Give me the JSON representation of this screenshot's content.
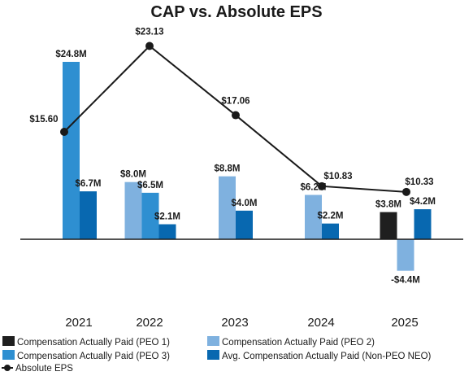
{
  "chart_data": {
    "type": "bar",
    "title": "CAP vs. Absolute EPS",
    "categories": [
      "2021",
      "2022",
      "2023",
      "2024",
      "2025"
    ],
    "series": [
      {
        "name": "Compensation Actually Paid (PEO 1)",
        "color": "#1f1f1f",
        "values": [
          null,
          null,
          null,
          null,
          3.8
        ],
        "labels": [
          null,
          null,
          null,
          null,
          "$3.8M"
        ]
      },
      {
        "name": "Compensation Actually Paid (PEO 2)",
        "color": "#7fb1df",
        "values": [
          null,
          8.0,
          8.8,
          6.2,
          -4.4
        ],
        "labels": [
          null,
          "$8.0M",
          "$8.8M",
          "$6.2M",
          "-$4.4M"
        ]
      },
      {
        "name": "Compensation Actually Paid (PEO 3)",
        "color": "#2e8fd1",
        "values": [
          24.8,
          6.5,
          null,
          null,
          null
        ],
        "labels": [
          "$24.8M",
          "$6.5M",
          null,
          null,
          null
        ]
      },
      {
        "name": "Avg. Compensation Actually Paid (Non-PEO NEO)",
        "color": "#0868b0",
        "values": [
          6.7,
          2.1,
          4.0,
          2.2,
          4.2
        ],
        "labels": [
          "$6.7M",
          "$2.1M",
          "$4.0M",
          "$2.2M",
          "$4.2M"
        ]
      }
    ],
    "line_series": {
      "name": "Absolute EPS",
      "color": "#1a1a1a",
      "values": [
        15.6,
        23.13,
        17.06,
        10.83,
        10.33
      ],
      "labels": [
        "$15.60",
        "$23.13",
        "$17.06",
        "$10.83",
        "$10.33"
      ]
    },
    "legend_position": "bottom-left",
    "grid": false
  }
}
